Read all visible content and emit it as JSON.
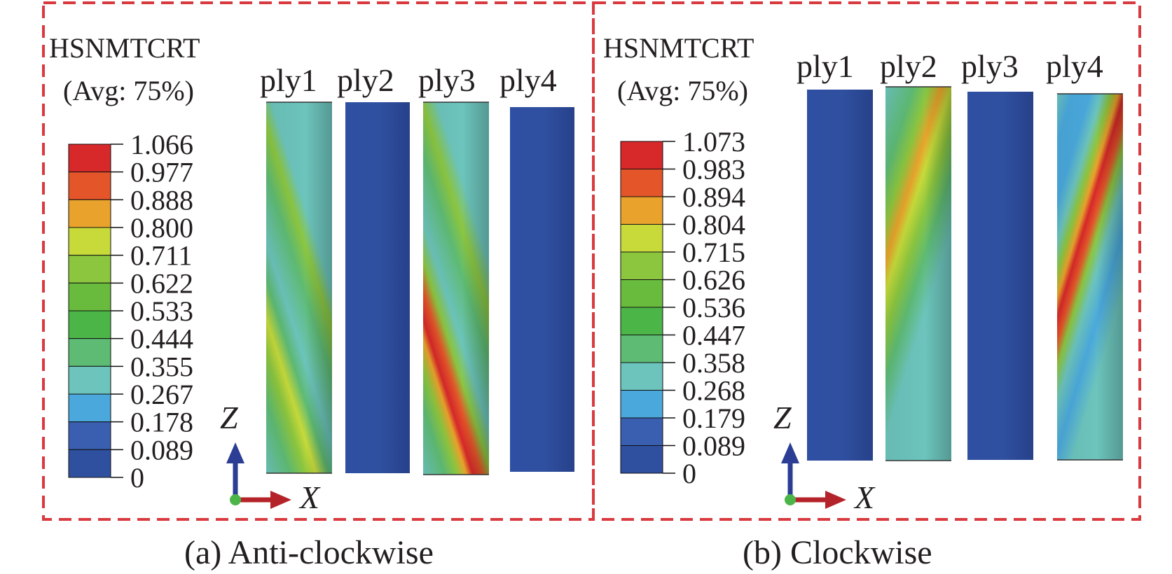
{
  "colors": {
    "frame": "#d93a3f",
    "contour_levels": [
      "#2f4f9f",
      "#3a5fb0",
      "#4aa8dc",
      "#6cc4bc",
      "#5ebb74",
      "#4cb548",
      "#69bb3e",
      "#8cc63f",
      "#c7da3a",
      "#e9a22b",
      "#e45529",
      "#d7282a"
    ],
    "axis_z": "#2b3d94",
    "axis_x": "#b5232a",
    "origin": "#4cb548"
  },
  "panels": [
    {
      "id": "a",
      "variable": "HSNMTCRT",
      "averaging": "(Avg: 75%)",
      "legend_values": [
        "1.066",
        "0.977",
        "0.888",
        "0.800",
        "0.711",
        "0.622",
        "0.533",
        "0.444",
        "0.355",
        "0.267",
        "0.178",
        "0.089",
        "0"
      ],
      "ply_labels": [
        "ply1",
        "ply2",
        "ply3",
        "ply4"
      ],
      "axis_labels": {
        "vertical": "Z",
        "horizontal": "X"
      },
      "caption": "(a) Anti-clockwise"
    },
    {
      "id": "b",
      "variable": "HSNMTCRT",
      "averaging": "(Avg: 75%)",
      "legend_values": [
        "1.073",
        "0.983",
        "0.894",
        "0.804",
        "0.715",
        "0.626",
        "0.536",
        "0.447",
        "0.358",
        "0.268",
        "0.179",
        "0.089",
        "0"
      ],
      "ply_labels": [
        "ply1",
        "ply2",
        "ply3",
        "ply4"
      ],
      "axis_labels": {
        "vertical": "Z",
        "horizontal": "X"
      },
      "caption": "(b) Clockwise"
    }
  ]
}
